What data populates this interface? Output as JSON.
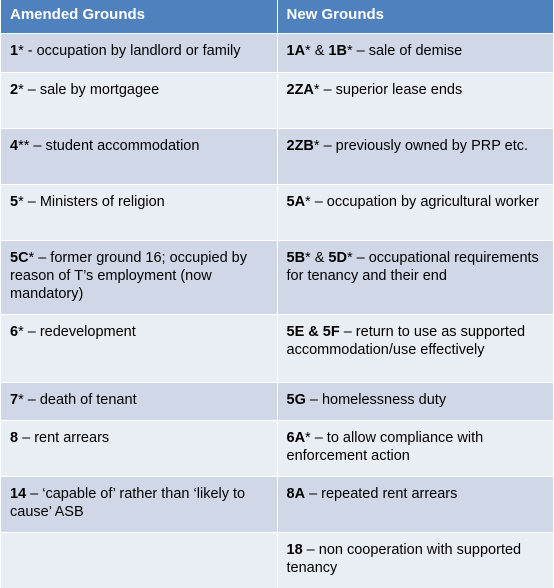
{
  "headers": {
    "amended": "Amended Grounds",
    "new": "New Grounds"
  },
  "rows": [
    {
      "amended": {
        "ground": "1",
        "text": "* - occupation by landlord or family"
      },
      "new": {
        "ground": "1A",
        "text": "* & ",
        "ground2": "1B",
        "text2": "* – sale of demise"
      }
    },
    {
      "amended": {
        "ground": "2",
        "text": "* – sale by mortgagee"
      },
      "new": {
        "ground": "2ZA",
        "text": "* – superior lease ends"
      }
    },
    {
      "amended": {
        "ground": "4",
        "text": "** – student accommodation"
      },
      "new": {
        "ground": "2ZB",
        "text": "* – previously owned by PRP etc."
      }
    },
    {
      "amended": {
        "ground": "5",
        "text": "* – Ministers of religion"
      },
      "new": {
        "ground": "5A",
        "text": "* – occupation by agricultural worker"
      }
    },
    {
      "amended": {
        "ground": "5C",
        "text": "* – former ground 16;  occupied by reason of T’s employment (now mandatory)"
      },
      "new": {
        "ground": "5B",
        "text": "* & ",
        "ground2": "5D",
        "text2": "* – occupational requirements for tenancy and their end"
      }
    },
    {
      "amended": {
        "ground": "6",
        "text": "* – redevelopment"
      },
      "new": {
        "ground": "5E & 5F",
        "text": " – return to use as supported accommodation/use effectively"
      }
    },
    {
      "amended": {
        "ground": "7",
        "text": "* – death of tenant"
      },
      "new": {
        "ground": "5G",
        "text": " – homelessness duty"
      }
    },
    {
      "amended": {
        "ground": "8",
        "text": " – rent arrears"
      },
      "new": {
        "ground": "6A",
        "text": "* – to allow compliance with enforcement action"
      }
    },
    {
      "amended": {
        "ground": "14",
        "text": " – ‘capable of’ rather than ‘likely to cause’ ASB"
      },
      "new": {
        "ground": "8A",
        "text": " – repeated rent arrears"
      }
    },
    {
      "amended": {
        "ground": "",
        "text": ""
      },
      "new": {
        "ground": "18",
        "text": " – non cooperation with supported tenancy"
      }
    }
  ]
}
